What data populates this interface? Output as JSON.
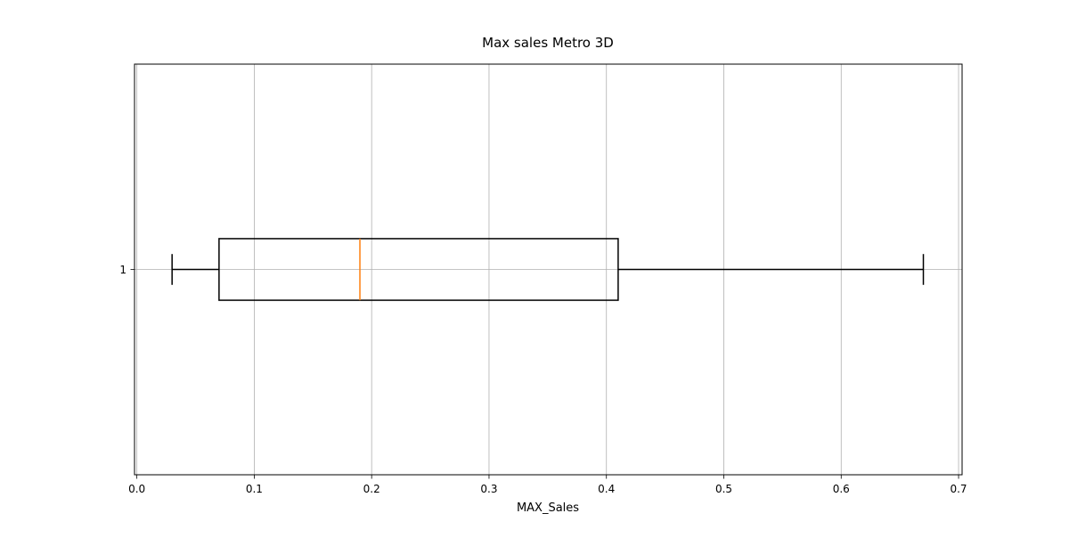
{
  "chart_data": {
    "type": "boxplot",
    "orientation": "horizontal",
    "title": "Max sales Metro 3D",
    "xlabel": "MAX_Sales",
    "ylabel": "",
    "xlim": [
      -0.002,
      0.703
    ],
    "x_ticks": [
      0.0,
      0.1,
      0.2,
      0.3,
      0.4,
      0.5,
      0.6,
      0.7
    ],
    "x_tick_labels": [
      "0.0",
      "0.1",
      "0.2",
      "0.3",
      "0.4",
      "0.5",
      "0.6",
      "0.7"
    ],
    "y_ticks": [
      1
    ],
    "y_tick_labels": [
      "1"
    ],
    "grid": true,
    "boxes": [
      {
        "position": 1,
        "whisker_low": 0.03,
        "q1": 0.07,
        "median": 0.19,
        "q3": 0.41,
        "whisker_high": 0.67
      }
    ],
    "colors": {
      "box": "#000000",
      "median": "#ff7f0e",
      "grid": "#b0b0b0"
    }
  }
}
